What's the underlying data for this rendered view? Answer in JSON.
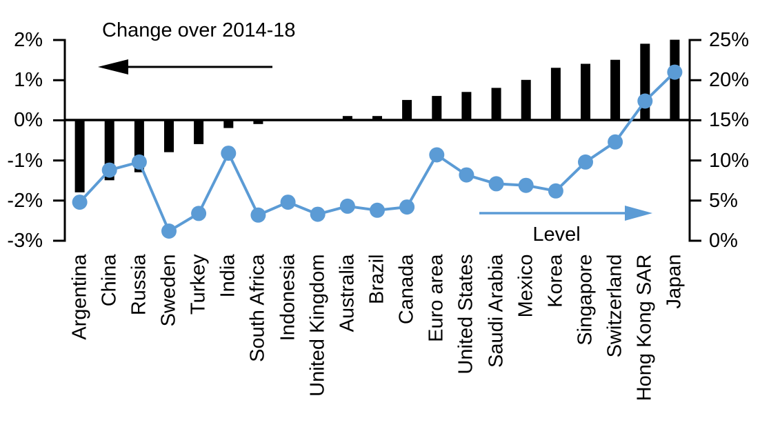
{
  "page": {
    "background": "#ffffff",
    "text_color": "#000000"
  },
  "chart_data": {
    "type": "bar",
    "subtype": "combo-bar-line-dual-axis",
    "title": "Change over 2014-18",
    "grid": false,
    "legend_position": "none",
    "categories": [
      "Argentina",
      "China",
      "Russia",
      "Sweden",
      "Turkey",
      "India",
      "South Africa",
      "Indonesia",
      "United Kingdom",
      "Australia",
      "Brazil",
      "Canada",
      "Euro area",
      "United States",
      "Saudi Arabia",
      "Mexico",
      "Korea",
      "Singapore",
      "Switzerland",
      "Hong Kong SAR",
      "Japan"
    ],
    "series": [
      {
        "name": "Change over 2014-18",
        "type": "bar",
        "axis": "left",
        "unit": "%",
        "color": "#000000",
        "values": [
          -1.8,
          -1.5,
          -1.3,
          -0.8,
          -0.6,
          -0.2,
          -0.1,
          0,
          0,
          0.1,
          0.1,
          0.5,
          0.6,
          0.7,
          0.8,
          1.0,
          1.3,
          1.4,
          1.5,
          1.9,
          2.0
        ]
      },
      {
        "name": "Level",
        "type": "line",
        "axis": "right",
        "unit": "%",
        "color": "#5B9BD5",
        "values": [
          4.8,
          8.8,
          9.8,
          1.2,
          3.4,
          10.9,
          3.2,
          4.8,
          3.3,
          4.3,
          3.8,
          4.2,
          10.7,
          8.2,
          7.1,
          6.9,
          6.2,
          9.8,
          12.3,
          17.4,
          21.0
        ]
      }
    ],
    "left_axis": {
      "min": -3,
      "max": 2,
      "tick_labels": [
        "2%",
        "1%",
        "0%",
        "-1%",
        "-2%",
        "-3%"
      ]
    },
    "right_axis": {
      "min": 0,
      "max": 25,
      "tick_labels": [
        "25%",
        "20%",
        "15%",
        "10%",
        "5%",
        "0%"
      ]
    },
    "annotations": [
      {
        "text": "Change over 2014-18",
        "arrow_direction": "left",
        "color": "#000000"
      },
      {
        "text": "Level",
        "arrow_direction": "right",
        "color": "#5B9BD5"
      }
    ]
  }
}
